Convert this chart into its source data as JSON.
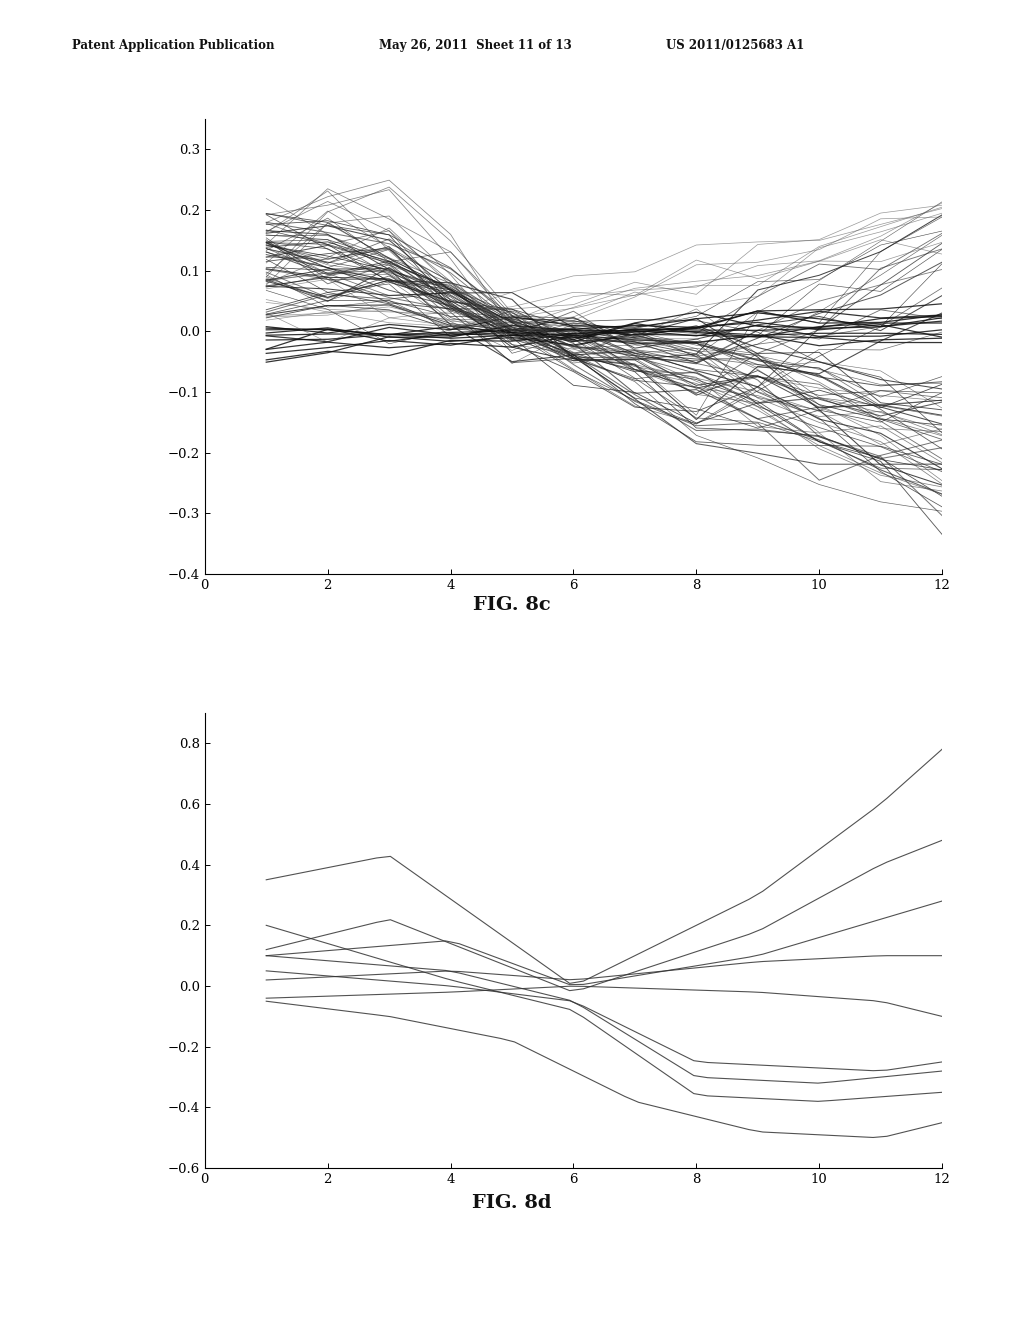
{
  "fig8c": {
    "title": "FIG. 8c",
    "xlim": [
      0,
      12
    ],
    "ylim": [
      -0.4,
      0.35
    ],
    "xticks": [
      0,
      2,
      4,
      6,
      8,
      10,
      12
    ],
    "yticks": [
      -0.4,
      -0.3,
      -0.2,
      -0.1,
      0,
      0.1,
      0.2,
      0.3
    ]
  },
  "fig8d": {
    "title": "FIG. 8d",
    "xlim": [
      0,
      12
    ],
    "ylim": [
      -0.6,
      0.9
    ],
    "xticks": [
      0,
      2,
      4,
      6,
      8,
      10,
      12
    ],
    "yticks": [
      -0.6,
      -0.4,
      -0.2,
      0,
      0.2,
      0.4,
      0.6,
      0.8
    ]
  },
  "header_left": "Patent Application Publication",
  "header_mid": "May 26, 2011  Sheet 11 of 13",
  "header_right": "US 2011/0125683 A1",
  "background_color": "#ffffff"
}
